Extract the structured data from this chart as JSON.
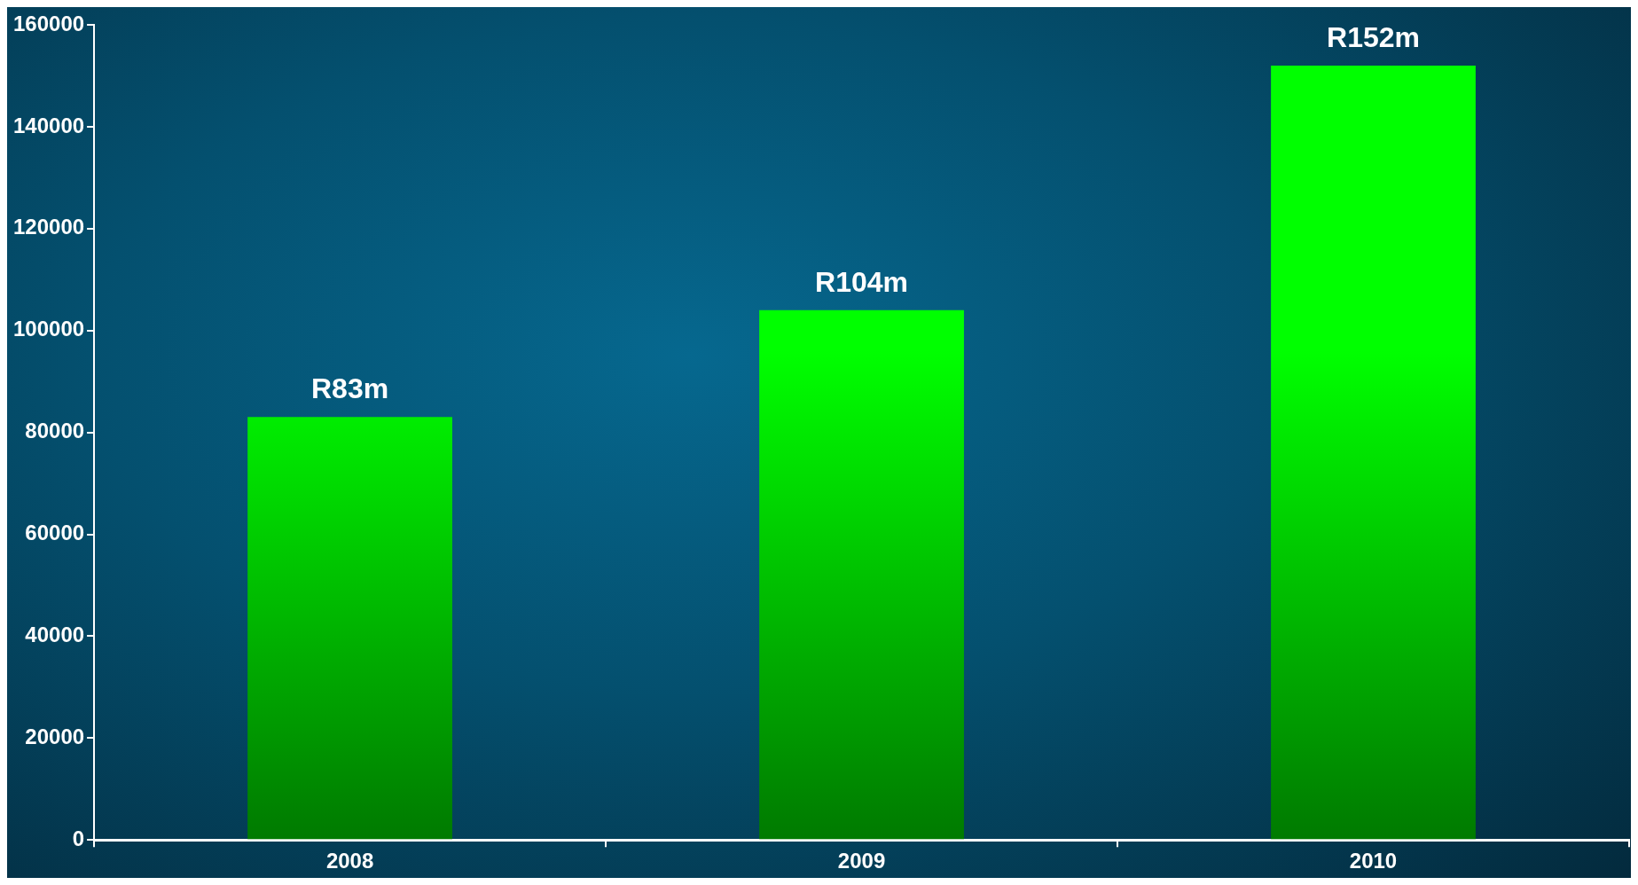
{
  "chart_data": {
    "type": "bar",
    "categories": [
      "2008",
      "2009",
      "2010"
    ],
    "values": [
      83000,
      104000,
      152000
    ],
    "value_labels": [
      "R83m",
      "R104m",
      "R152m"
    ],
    "color": "#00ff00",
    "ylim": [
      0,
      160000
    ],
    "yticks": [
      0,
      20000,
      40000,
      60000,
      80000,
      100000,
      120000,
      140000,
      160000
    ],
    "grid": false
  }
}
